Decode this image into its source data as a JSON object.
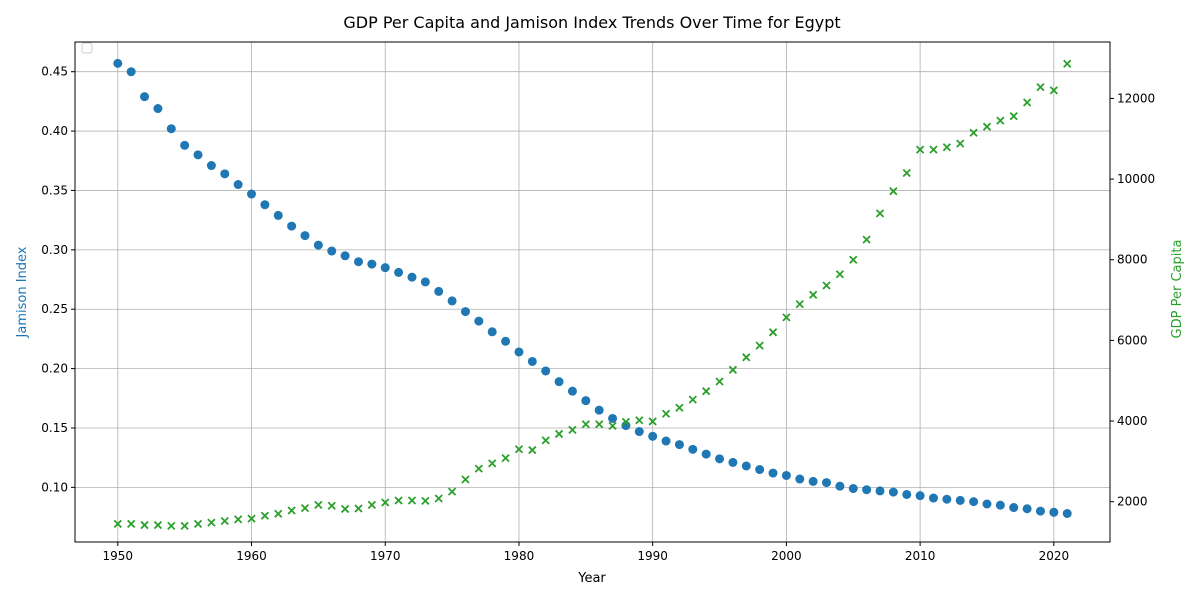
{
  "chart_data": {
    "type": "scatter",
    "title": "GDP Per Capita and Jamison Index Trends Over Time for Egypt",
    "xlabel": "Year",
    "ylabel_left": "Jamison Index",
    "ylabel_right": "GDP Per Capita",
    "x_ticks": [
      1950,
      1960,
      1970,
      1980,
      1990,
      2000,
      2010,
      2020
    ],
    "y_left_ticks": [
      "0.10",
      "0.15",
      "0.20",
      "0.25",
      "0.30",
      "0.35",
      "0.40",
      "0.45"
    ],
    "y_right_ticks": [
      "2000",
      "4000",
      "6000",
      "8000",
      "10000",
      "12000"
    ],
    "xlim": [
      1946.8,
      2024.2
    ],
    "ylim_left": [
      0.054,
      0.475
    ],
    "ylim_right": [
      1000,
      13400
    ],
    "grid": true,
    "legend": "top-left (empty)",
    "colors": {
      "jamison": "#1f77b4",
      "gdp": "#2ca02c"
    },
    "x": [
      1950,
      1951,
      1952,
      1953,
      1954,
      1955,
      1956,
      1957,
      1958,
      1959,
      1960,
      1961,
      1962,
      1963,
      1964,
      1965,
      1966,
      1967,
      1968,
      1969,
      1970,
      1971,
      1972,
      1973,
      1974,
      1975,
      1976,
      1977,
      1978,
      1979,
      1980,
      1981,
      1982,
      1983,
      1984,
      1985,
      1986,
      1987,
      1988,
      1989,
      1990,
      1991,
      1992,
      1993,
      1994,
      1995,
      1996,
      1997,
      1998,
      1999,
      2000,
      2001,
      2002,
      2003,
      2004,
      2005,
      2006,
      2007,
      2008,
      2009,
      2010,
      2011,
      2012,
      2013,
      2014,
      2015,
      2016,
      2017,
      2018,
      2019,
      2020,
      2021
    ],
    "series": [
      {
        "name": "Jamison Index",
        "axis": "left",
        "marker": "circle",
        "values": [
          0.457,
          0.45,
          0.429,
          0.419,
          0.402,
          0.388,
          0.38,
          0.371,
          0.364,
          0.355,
          0.347,
          0.338,
          0.329,
          0.32,
          0.312,
          0.304,
          0.299,
          0.295,
          0.29,
          0.288,
          0.285,
          0.281,
          0.277,
          0.273,
          0.265,
          0.257,
          0.248,
          0.24,
          0.231,
          0.223,
          0.214,
          0.206,
          0.198,
          0.189,
          0.181,
          0.173,
          0.165,
          0.158,
          0.152,
          0.147,
          0.143,
          0.139,
          0.136,
          0.132,
          0.128,
          0.124,
          0.121,
          0.118,
          0.115,
          0.112,
          0.11,
          0.107,
          0.105,
          0.104,
          0.101,
          0.099,
          0.098,
          0.097,
          0.096,
          0.094,
          0.093,
          0.091,
          0.09,
          0.089,
          0.088,
          0.086,
          0.085,
          0.083,
          0.082,
          0.08,
          0.079,
          0.078
        ]
      },
      {
        "name": "GDP Per Capita",
        "axis": "right",
        "marker": "x",
        "values": [
          1450,
          1450,
          1420,
          1420,
          1400,
          1400,
          1450,
          1480,
          1520,
          1560,
          1580,
          1650,
          1700,
          1780,
          1840,
          1920,
          1900,
          1820,
          1830,
          1920,
          1980,
          2030,
          2030,
          2020,
          2080,
          2250,
          2550,
          2820,
          2950,
          3080,
          3300,
          3280,
          3520,
          3680,
          3780,
          3920,
          3920,
          3880,
          3980,
          4020,
          3990,
          4180,
          4330,
          4530,
          4740,
          4980,
          5270,
          5580,
          5870,
          6200,
          6570,
          6900,
          7130,
          7360,
          7640,
          8000,
          8500,
          9150,
          9700,
          10150,
          10730,
          10730,
          10790,
          10880,
          11150,
          11300,
          11450,
          11560,
          11900,
          12280,
          12200,
          12860
        ]
      }
    ]
  }
}
